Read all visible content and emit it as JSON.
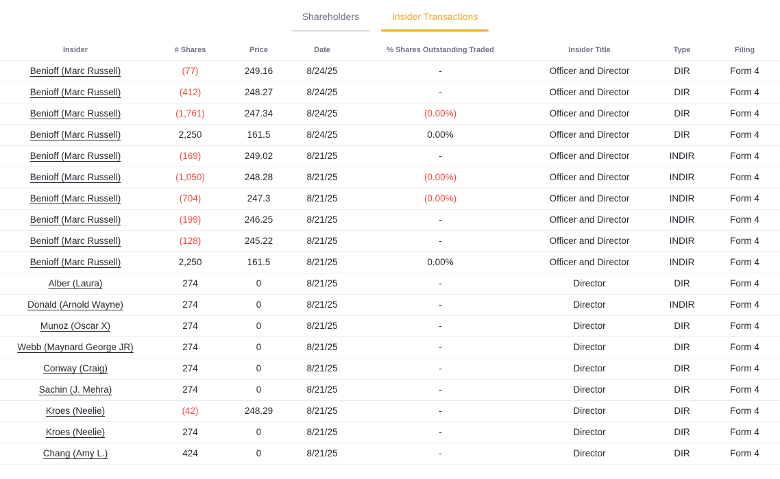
{
  "colors": {
    "accent_orange": "#f5a623",
    "negative_red": "#f04a3e",
    "text": "#24292f",
    "header_gray": "#6b7280",
    "tab_inactive": "#6b7280",
    "border": "#ececec",
    "inactive_underline": "#dcdcdc"
  },
  "tabs": [
    {
      "label": "Shareholders",
      "active": false
    },
    {
      "label": "Insider Transactions",
      "active": true
    }
  ],
  "table": {
    "columns": [
      {
        "key": "insider",
        "label": "Insider"
      },
      {
        "key": "shares",
        "label": "# Shares"
      },
      {
        "key": "price",
        "label": "Price"
      },
      {
        "key": "date",
        "label": "Date"
      },
      {
        "key": "pct",
        "label": "% Shares Outstanding Traded"
      },
      {
        "key": "title",
        "label": "Insider Title"
      },
      {
        "key": "type",
        "label": "Type"
      },
      {
        "key": "filing",
        "label": "Filing"
      }
    ],
    "rows": [
      {
        "insider": "Benioff (Marc Russell)",
        "shares": "(77)",
        "price": "249.16",
        "date": "8/24/25",
        "pct": "-",
        "title": "Officer and Director",
        "type": "DIR",
        "filing": "Form 4"
      },
      {
        "insider": "Benioff (Marc Russell)",
        "shares": "(412)",
        "price": "248.27",
        "date": "8/24/25",
        "pct": "-",
        "title": "Officer and Director",
        "type": "DIR",
        "filing": "Form 4"
      },
      {
        "insider": "Benioff (Marc Russell)",
        "shares": "(1,761)",
        "price": "247.34",
        "date": "8/24/25",
        "pct": "(0.00%)",
        "title": "Officer and Director",
        "type": "DIR",
        "filing": "Form 4"
      },
      {
        "insider": "Benioff (Marc Russell)",
        "shares": "2,250",
        "price": "161.5",
        "date": "8/24/25",
        "pct": "0.00%",
        "title": "Officer and Director",
        "type": "DIR",
        "filing": "Form 4"
      },
      {
        "insider": "Benioff (Marc Russell)",
        "shares": "(169)",
        "price": "249.02",
        "date": "8/21/25",
        "pct": "-",
        "title": "Officer and Director",
        "type": "INDIR",
        "filing": "Form 4"
      },
      {
        "insider": "Benioff (Marc Russell)",
        "shares": "(1,050)",
        "price": "248.28",
        "date": "8/21/25",
        "pct": "(0.00%)",
        "title": "Officer and Director",
        "type": "INDIR",
        "filing": "Form 4"
      },
      {
        "insider": "Benioff (Marc Russell)",
        "shares": "(704)",
        "price": "247.3",
        "date": "8/21/25",
        "pct": "(0.00%)",
        "title": "Officer and Director",
        "type": "INDIR",
        "filing": "Form 4"
      },
      {
        "insider": "Benioff (Marc Russell)",
        "shares": "(199)",
        "price": "246.25",
        "date": "8/21/25",
        "pct": "-",
        "title": "Officer and Director",
        "type": "INDIR",
        "filing": "Form 4"
      },
      {
        "insider": "Benioff (Marc Russell)",
        "shares": "(128)",
        "price": "245.22",
        "date": "8/21/25",
        "pct": "-",
        "title": "Officer and Director",
        "type": "INDIR",
        "filing": "Form 4"
      },
      {
        "insider": "Benioff (Marc Russell)",
        "shares": "2,250",
        "price": "161.5",
        "date": "8/21/25",
        "pct": "0.00%",
        "title": "Officer and Director",
        "type": "INDIR",
        "filing": "Form 4"
      },
      {
        "insider": "Alber (Laura)",
        "shares": "274",
        "price": "0",
        "date": "8/21/25",
        "pct": "-",
        "title": "Director",
        "type": "DIR",
        "filing": "Form 4"
      },
      {
        "insider": "Donald (Arnold Wayne)",
        "shares": "274",
        "price": "0",
        "date": "8/21/25",
        "pct": "-",
        "title": "Director",
        "type": "INDIR",
        "filing": "Form 4"
      },
      {
        "insider": "Munoz (Oscar X)",
        "shares": "274",
        "price": "0",
        "date": "8/21/25",
        "pct": "-",
        "title": "Director",
        "type": "DIR",
        "filing": "Form 4"
      },
      {
        "insider": "Webb (Maynard George JR)",
        "shares": "274",
        "price": "0",
        "date": "8/21/25",
        "pct": "-",
        "title": "Director",
        "type": "DIR",
        "filing": "Form 4"
      },
      {
        "insider": "Conway (Craig)",
        "shares": "274",
        "price": "0",
        "date": "8/21/25",
        "pct": "-",
        "title": "Director",
        "type": "DIR",
        "filing": "Form 4"
      },
      {
        "insider": "Sachin (J. Mehra)",
        "shares": "274",
        "price": "0",
        "date": "8/21/25",
        "pct": "-",
        "title": "Director",
        "type": "DIR",
        "filing": "Form 4"
      },
      {
        "insider": "Kroes (Neelie)",
        "shares": "(42)",
        "price": "248.29",
        "date": "8/21/25",
        "pct": "-",
        "title": "Director",
        "type": "DIR",
        "filing": "Form 4"
      },
      {
        "insider": "Kroes (Neelie)",
        "shares": "274",
        "price": "0",
        "date": "8/21/25",
        "pct": "-",
        "title": "Director",
        "type": "DIR",
        "filing": "Form 4"
      },
      {
        "insider": "Chang (Amy L.)",
        "shares": "424",
        "price": "0",
        "date": "8/21/25",
        "pct": "-",
        "title": "Director",
        "type": "DIR",
        "filing": "Form 4"
      }
    ]
  }
}
